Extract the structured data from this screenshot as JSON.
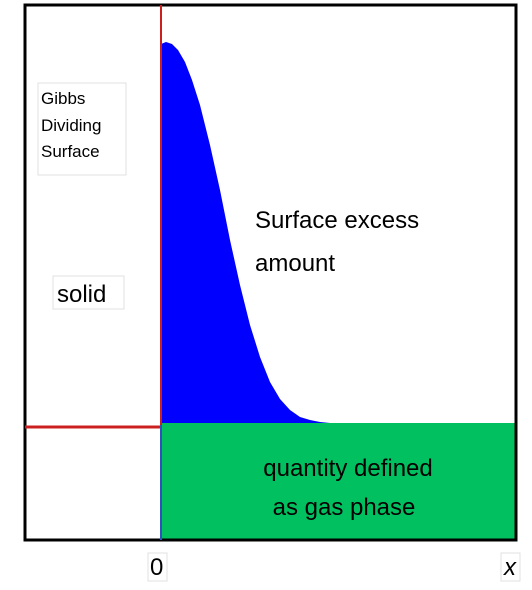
{
  "gibbs_dividing_surface": [
    "Gibbs",
    "Dividing",
    "Surface"
  ],
  "surface_excess": [
    "Surface excess",
    "amount"
  ],
  "solid": "solid",
  "gas_phase": [
    "quantity defined",
    "as gas phase"
  ],
  "axis": {
    "origin": "0",
    "x": "x"
  }
}
